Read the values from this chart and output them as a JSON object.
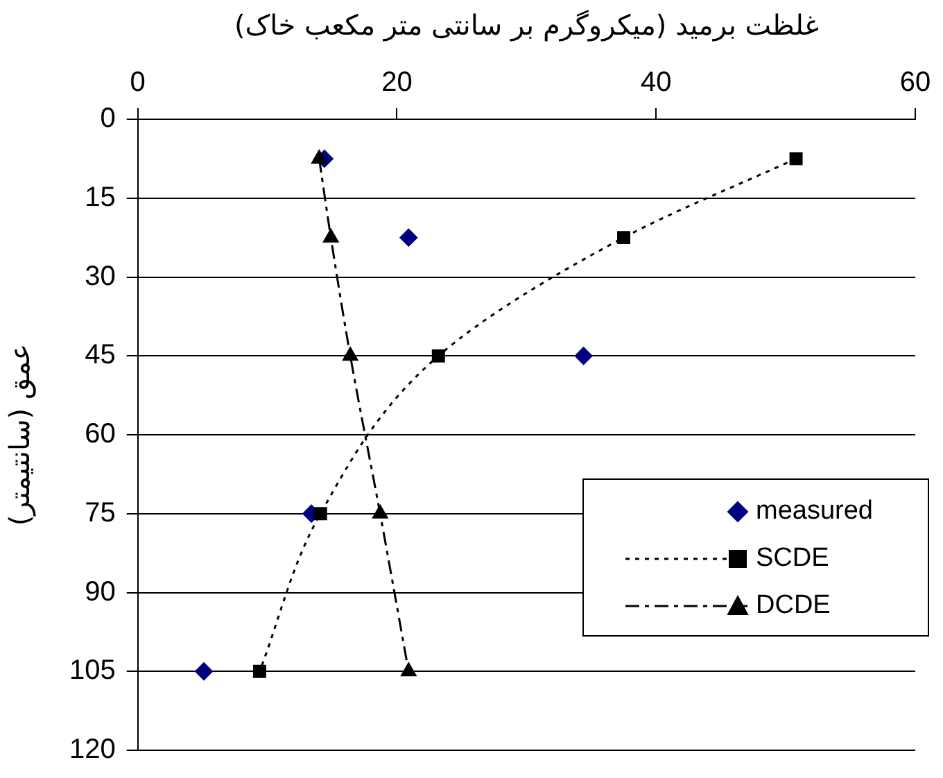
{
  "chart_data": {
    "type": "scatter",
    "xlabel": "غلظت برمید (میکروگرم بر سانتی متر مکعب خاک)",
    "ylabel": "عمق (سانتیمتر)",
    "xlim": [
      0,
      60
    ],
    "xticks": [
      0,
      20,
      40,
      60
    ],
    "ylim": [
      120,
      0
    ],
    "yticks": [
      0,
      15,
      30,
      45,
      60,
      75,
      90,
      105,
      120
    ],
    "grid": "y",
    "legend": "right",
    "series": [
      {
        "name": "measured",
        "type": "scatter",
        "color": "#000080",
        "marker": "diamond",
        "x": [
          14.4,
          20.9,
          34.4,
          13.4,
          5.1
        ],
        "values": [
          7.5,
          22.5,
          45,
          75,
          105
        ]
      },
      {
        "name": "SCDE",
        "type": "line",
        "color": "#000000",
        "marker": "square",
        "line_style": "dotted",
        "x": [
          50.8,
          37.5,
          23.2,
          14.1,
          9.4
        ],
        "values": [
          7.5,
          22.5,
          45,
          75,
          105
        ]
      },
      {
        "name": "DCDE",
        "type": "line",
        "color": "#000000",
        "marker": "triangle",
        "line_style": "dashed",
        "x": [
          14.0,
          14.9,
          16.4,
          18.7,
          20.9
        ],
        "values": [
          7.5,
          22.5,
          45,
          75,
          105
        ]
      }
    ]
  }
}
